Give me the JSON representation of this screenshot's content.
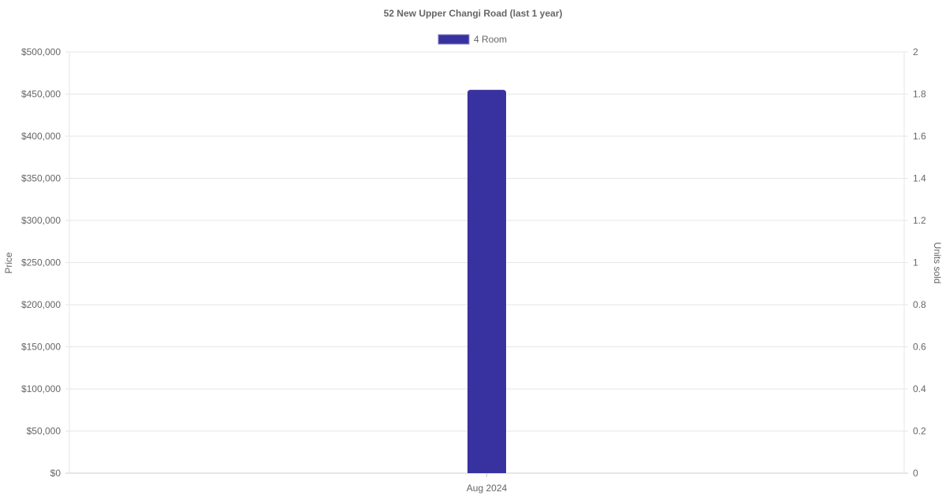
{
  "chart_data": {
    "type": "bar",
    "title": "52 New Upper Changi Road (last 1 year)",
    "categories": [
      "Aug 2024"
    ],
    "series": [
      {
        "name": "4 Room",
        "values": [
          455000
        ],
        "color": "#3832a0",
        "axis": "left"
      }
    ],
    "ylabel": "Price",
    "y2label": "Units sold",
    "ylim": [
      0,
      500000
    ],
    "y2lim": [
      0,
      2
    ],
    "yticks": [
      "$0",
      "$50,000",
      "$100,000",
      "$150,000",
      "$200,000",
      "$250,000",
      "$300,000",
      "$350,000",
      "$400,000",
      "$450,000",
      "$500,000"
    ],
    "y2ticks": [
      "0",
      "0.2",
      "0.4",
      "0.6",
      "0.8",
      "1",
      "1.2",
      "1.4",
      "1.6",
      "1.8",
      "2"
    ],
    "grid": true,
    "legend": "top"
  }
}
